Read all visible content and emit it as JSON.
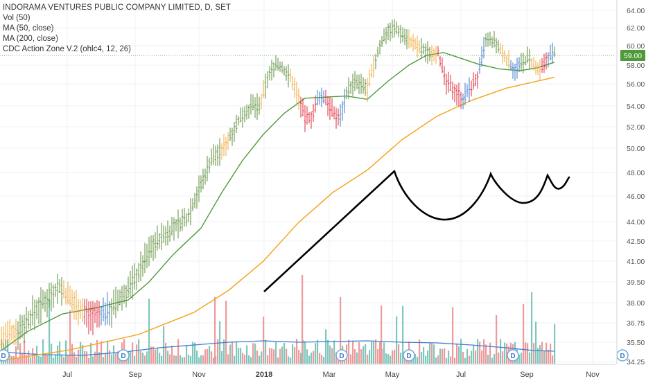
{
  "legend": {
    "title": "INDORAMA VENTURES PUBLIC COMPANY LIMITED, D, SET",
    "vol": "Vol (50)",
    "ma50": "MA (50, close)",
    "ma200": "MA (200, close)",
    "cdc": "CDC Action Zone V.2 (ohlc4, 12, 26)"
  },
  "chart_data": {
    "type": "line",
    "y_ticks": [
      "64.00",
      "62.00",
      "60.00",
      "58.00",
      "56.00",
      "54.00",
      "52.00",
      "50.00",
      "48.00",
      "46.00",
      "44.00",
      "42.50",
      "41.00",
      "39.50",
      "38.00",
      "36.75",
      "35.50",
      "34.25"
    ],
    "x_ticks": [
      "Jul",
      "Sep",
      "Nov",
      "2018",
      "Mar",
      "May",
      "Jul",
      "Sep",
      "Nov"
    ],
    "last_price": "59.00",
    "dividend_marker": "D",
    "dividend_months": [
      "Jun",
      "Aug",
      "Jun",
      "Apr",
      "Jun",
      "Aug"
    ],
    "price_series": [
      {
        "month": "Jun",
        "close": 36.0
      },
      {
        "month": "Jul",
        "close": 39.0
      },
      {
        "month": "Aug",
        "close": 37.2
      },
      {
        "month": "Sep",
        "close": 39.0
      },
      {
        "month": "Oct",
        "close": 44.0
      },
      {
        "month": "Nov",
        "close": 49.0
      },
      {
        "month": "Dec",
        "close": 54.0
      },
      {
        "month": "Jan",
        "close": 58.5
      },
      {
        "month": "Feb",
        "close": 54.0
      },
      {
        "month": "Mar",
        "close": 56.0
      },
      {
        "month": "Apr",
        "close": 59.5
      },
      {
        "month": "May",
        "close": 62.0
      },
      {
        "month": "Jun",
        "close": 57.0
      },
      {
        "month": "Jul",
        "close": 60.0
      },
      {
        "month": "Aug",
        "close": 58.0
      },
      {
        "month": "Sep",
        "close": 59.0
      }
    ],
    "ma50_series": [
      {
        "month": "Jun",
        "value": 35.8
      },
      {
        "month": "Jul",
        "value": 37.2
      },
      {
        "month": "Aug",
        "value": 37.8
      },
      {
        "month": "Sep",
        "value": 38.0
      },
      {
        "month": "Oct",
        "value": 40.0
      },
      {
        "month": "Nov",
        "value": 44.0
      },
      {
        "month": "Dec",
        "value": 49.5
      },
      {
        "month": "Jan",
        "value": 53.0
      },
      {
        "month": "Feb",
        "value": 54.8
      },
      {
        "month": "Mar",
        "value": 55.0
      },
      {
        "month": "Apr",
        "value": 56.5
      },
      {
        "month": "May",
        "value": 58.5
      },
      {
        "month": "Jun",
        "value": 59.3
      },
      {
        "month": "Jul",
        "value": 58.0
      },
      {
        "month": "Aug",
        "value": 57.8
      },
      {
        "month": "Sep",
        "value": 58.3
      }
    ],
    "ma200_series": [
      {
        "month": "Jun",
        "value": 34.5
      },
      {
        "month": "Sep",
        "value": 35.6
      },
      {
        "month": "Nov",
        "value": 37.5
      },
      {
        "month": "Jan",
        "value": 41.0
      },
      {
        "month": "Mar",
        "value": 45.5
      },
      {
        "month": "May",
        "value": 49.0
      },
      {
        "month": "Jul",
        "value": 53.5
      },
      {
        "month": "Sep",
        "value": 56.7
      }
    ],
    "colors": {
      "bull": "#5b8c3a",
      "bear": "#e0283a",
      "warn": "#f2a93b",
      "blue": "#3c78c8",
      "ma50": "#4e9a38",
      "ma200": "#f5a623",
      "vol_up": "#7fc7bd",
      "vol_down": "#ef9a9a",
      "vol_ma": "#3d7fd0",
      "last_price_bg": "#4e9a38",
      "hand_drawn": "#000000"
    }
  }
}
